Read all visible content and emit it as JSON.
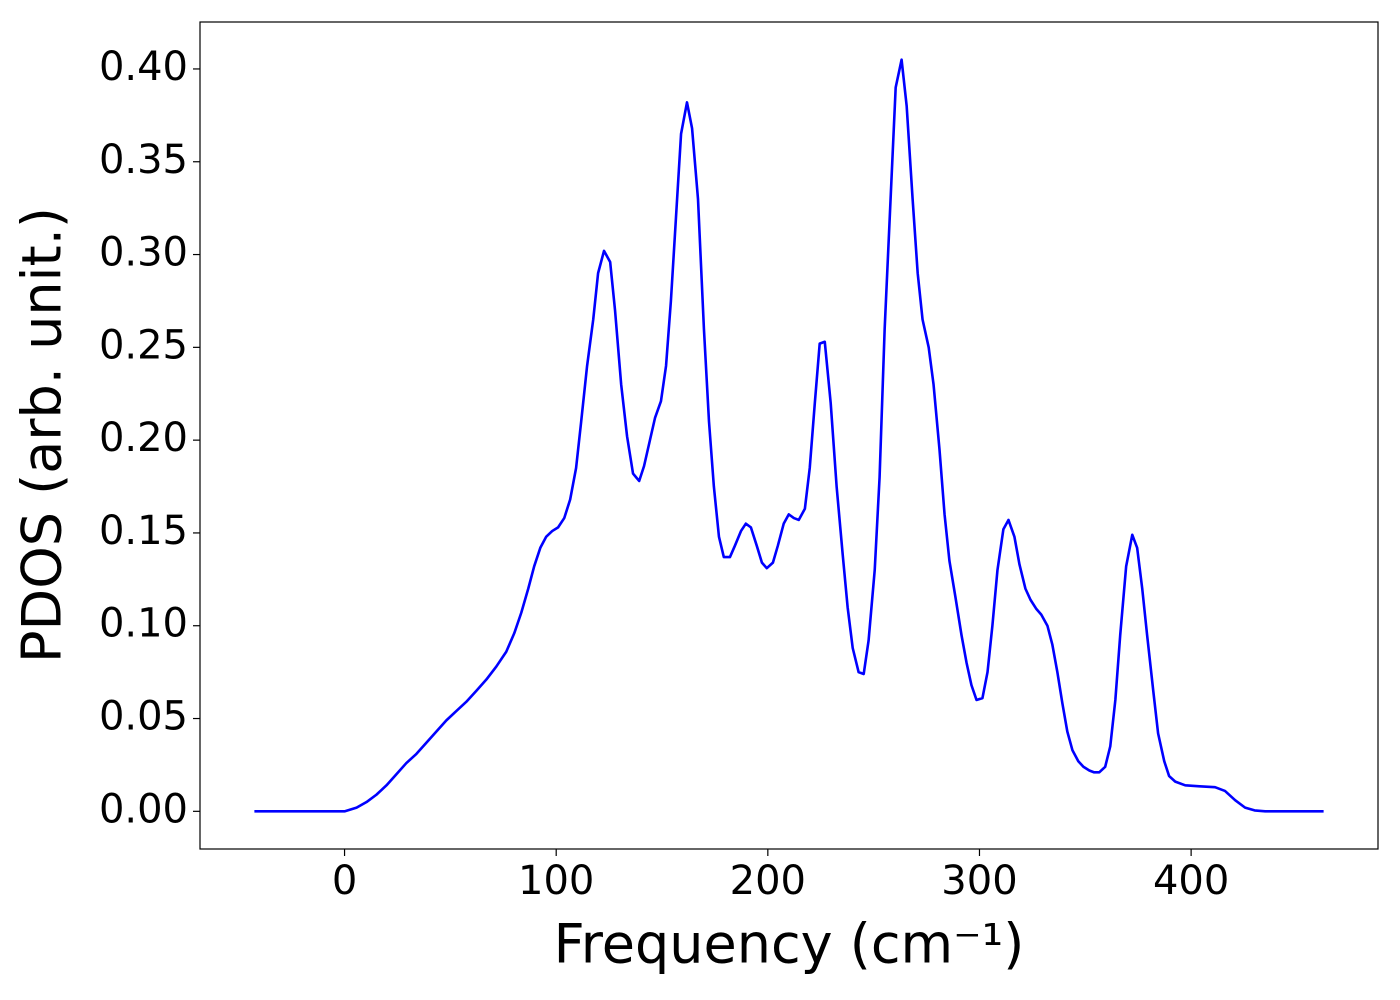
{
  "chart_data": {
    "type": "line",
    "xlabel": "Frequency (cm⁻¹)",
    "ylabel": "PDOS (arb. unit.)",
    "xlim": [
      -68.3,
      488.3
    ],
    "ylim": [
      -0.0203,
      0.4253
    ],
    "xticks": [
      0,
      100,
      200,
      300,
      400
    ],
    "yticks": [
      {
        "value": 0,
        "label": "0.00"
      },
      {
        "value": 0.05,
        "label": "0.05"
      },
      {
        "value": 0.1,
        "label": "0.10"
      },
      {
        "value": 0.15,
        "label": "0.15"
      },
      {
        "value": 0.2,
        "label": "0.20"
      },
      {
        "value": 0.25,
        "label": "0.25"
      },
      {
        "value": 0.3,
        "label": "0.30"
      },
      {
        "value": 0.35,
        "label": "0.35"
      },
      {
        "value": 0.4,
        "label": "0.40"
      }
    ],
    "grid": false,
    "x": [
      -42.6,
      0,
      5.7,
      10.4,
      15.1,
      19.8,
      24.5,
      29.2,
      34,
      38.7,
      43.4,
      48.1,
      52.8,
      57.5,
      62.3,
      67,
      71.7,
      76.4,
      80.2,
      83.5,
      86.8,
      89.6,
      92.5,
      95.3,
      98.1,
      100.9,
      103.8,
      106.6,
      109.4,
      111.8,
      114.6,
      117.5,
      119.8,
      122.6,
      125.5,
      127.8,
      130.7,
      133.5,
      136.3,
      139.2,
      141.5,
      144.3,
      146.7,
      149.5,
      151.9,
      154.2,
      156.6,
      159,
      161.8,
      164.2,
      167,
      169.8,
      172.2,
      174.5,
      176.9,
      179.2,
      182.1,
      184.4,
      187.3,
      189.6,
      192,
      194.8,
      197.2,
      199.5,
      202.4,
      204.7,
      207.5,
      209.9,
      212.3,
      214.6,
      217.5,
      219.8,
      222.2,
      224.5,
      226.9,
      229.7,
      232.5,
      235.4,
      237.7,
      240.1,
      242.9,
      245.3,
      247.6,
      250.5,
      252.8,
      255.2,
      258,
      260.4,
      263.2,
      265.6,
      268.4,
      270.8,
      273.1,
      276,
      278.3,
      281.1,
      283.5,
      285.8,
      288.7,
      291.5,
      293.9,
      296.2,
      298.6,
      301.4,
      303.8,
      306.1,
      308.5,
      311.3,
      313.7,
      316.5,
      318.9,
      321.7,
      324.1,
      326.9,
      329.2,
      332.1,
      334.4,
      336.8,
      339.2,
      341.5,
      343.9,
      346.7,
      349.1,
      351.9,
      354.2,
      356.6,
      359.4,
      361.8,
      364.2,
      366.5,
      369.3,
      372.2,
      374.5,
      376.9,
      379.2,
      382.1,
      384.4,
      387.3,
      389.6,
      392.5,
      397.2,
      404,
      411.3,
      416,
      420.8,
      425.5,
      430,
      435,
      462.6
    ],
    "series": [
      {
        "name": "PDOS",
        "color": "#0000ff",
        "values": [
          0,
          0,
          0.002,
          0.005,
          0.009,
          0.014,
          0.02,
          0.026,
          0.031,
          0.037,
          0.043,
          0.049,
          0.054,
          0.059,
          0.065,
          0.071,
          0.078,
          0.086,
          0.096,
          0.107,
          0.12,
          0.132,
          0.142,
          0.148,
          0.151,
          0.153,
          0.158,
          0.168,
          0.185,
          0.21,
          0.24,
          0.265,
          0.29,
          0.302,
          0.296,
          0.27,
          0.23,
          0.202,
          0.182,
          0.178,
          0.186,
          0.2,
          0.212,
          0.221,
          0.24,
          0.275,
          0.32,
          0.365,
          0.382,
          0.368,
          0.33,
          0.26,
          0.21,
          0.175,
          0.148,
          0.137,
          0.137,
          0.143,
          0.151,
          0.155,
          0.153,
          0.143,
          0.134,
          0.131,
          0.134,
          0.143,
          0.155,
          0.16,
          0.158,
          0.157,
          0.163,
          0.185,
          0.22,
          0.252,
          0.253,
          0.22,
          0.175,
          0.138,
          0.11,
          0.088,
          0.075,
          0.074,
          0.092,
          0.13,
          0.18,
          0.26,
          0.33,
          0.39,
          0.405,
          0.38,
          0.33,
          0.29,
          0.265,
          0.25,
          0.23,
          0.195,
          0.16,
          0.135,
          0.115,
          0.095,
          0.08,
          0.068,
          0.06,
          0.061,
          0.075,
          0.1,
          0.13,
          0.152,
          0.157,
          0.148,
          0.133,
          0.12,
          0.114,
          0.109,
          0.106,
          0.1,
          0.09,
          0.075,
          0.058,
          0.043,
          0.033,
          0.027,
          0.024,
          0.022,
          0.021,
          0.021,
          0.024,
          0.035,
          0.06,
          0.095,
          0.132,
          0.149,
          0.142,
          0.12,
          0.095,
          0.065,
          0.042,
          0.027,
          0.019,
          0.016,
          0.014,
          0.0135,
          0.013,
          0.011,
          0.006,
          0.002,
          0.0005,
          0,
          0
        ]
      }
    ]
  }
}
